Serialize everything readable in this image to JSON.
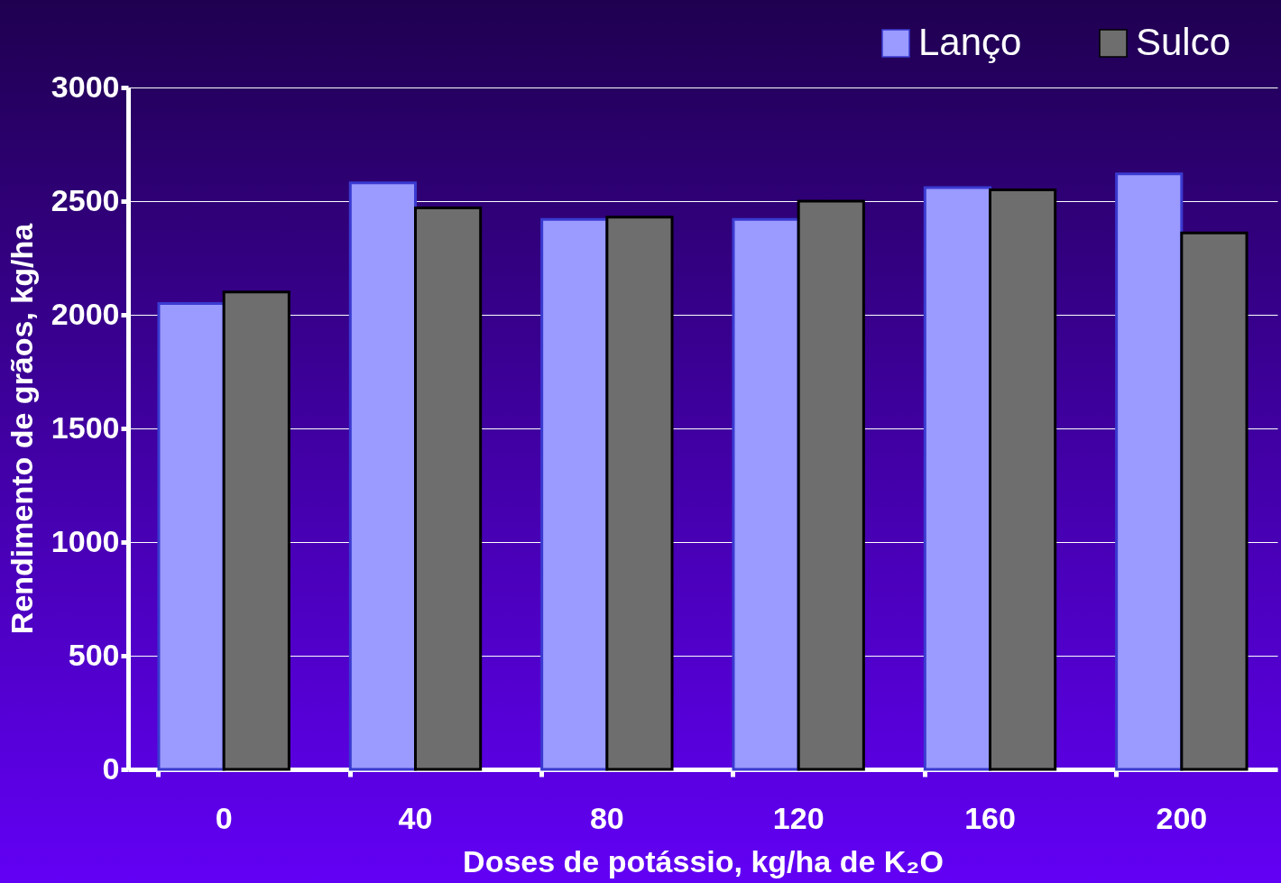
{
  "chart_data": {
    "type": "bar",
    "xlabel": "Doses de potássio,  kg/ha de K₂O",
    "ylabel": "Rendimento de grãos, kg/ha",
    "categories": [
      "0",
      "40",
      "80",
      "120",
      "160",
      "200"
    ],
    "series": [
      {
        "name": "Lanço",
        "color": "#9a9aff",
        "values": [
          2050,
          2580,
          2420,
          2420,
          2560,
          2620
        ]
      },
      {
        "name": "Sulco",
        "color": "#6e6e6e",
        "values": [
          2100,
          2470,
          2430,
          2500,
          2550,
          2360
        ]
      }
    ],
    "ylim": [
      0,
      3000
    ],
    "yticks": [
      0,
      500,
      1000,
      1500,
      2000,
      2500,
      3000
    ],
    "grid": "y",
    "legend": "top right"
  }
}
